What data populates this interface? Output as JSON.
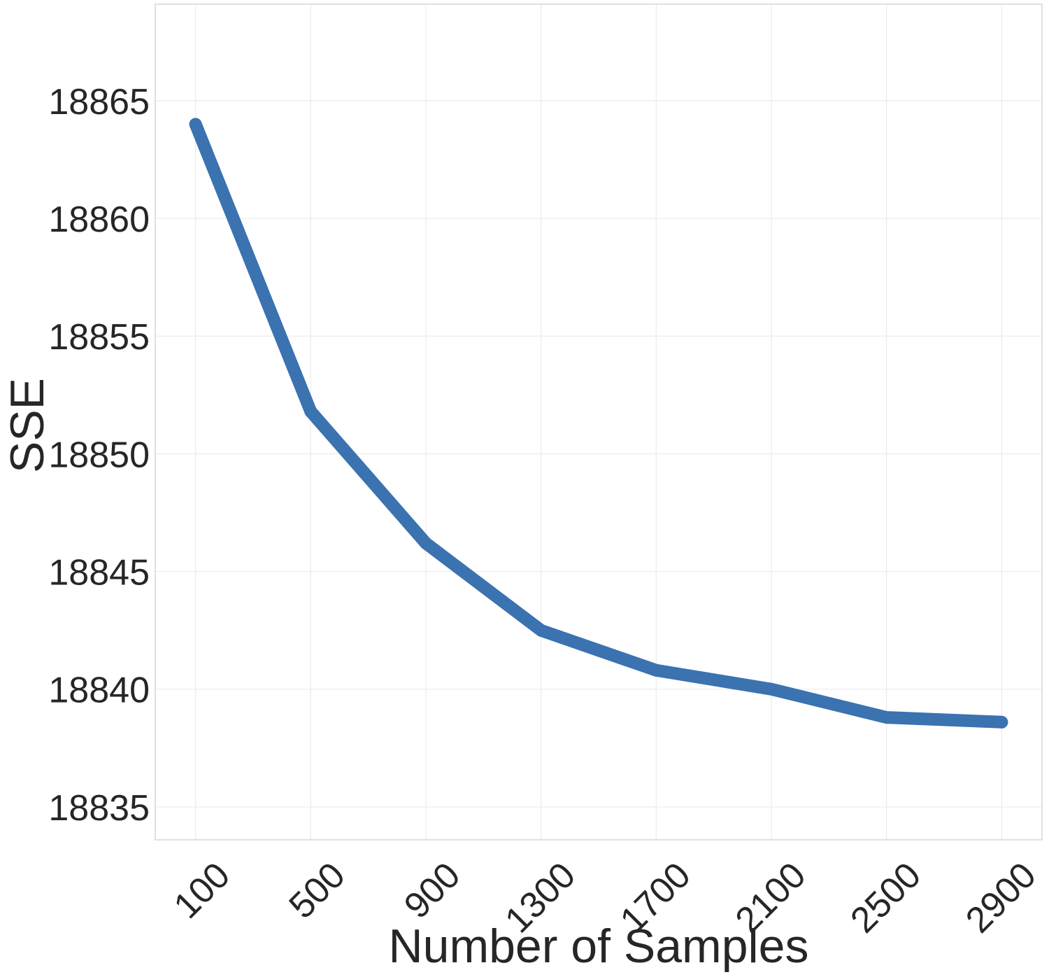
{
  "chart_data": {
    "type": "line",
    "title": "",
    "xlabel": "Number of Samples",
    "ylabel": "SSE",
    "x": [
      100,
      500,
      900,
      1300,
      1700,
      2100,
      2500,
      2900
    ],
    "x_tick_labels": [
      "100",
      "500",
      "900",
      "1300",
      "1700",
      "2100",
      "2500",
      "2900"
    ],
    "y_ticks": [
      18835,
      18840,
      18845,
      18850,
      18855,
      18860,
      18865
    ],
    "y_tick_labels": [
      "18835",
      "18840",
      "18845",
      "18850",
      "18855",
      "18860",
      "18865"
    ],
    "ylim": [
      18833.6,
      18869.1
    ],
    "xlim": [
      -40,
      3040
    ],
    "grid": true,
    "x_tick_rotation_deg": 45,
    "series": [
      {
        "values": [
          18864.0,
          18851.8,
          18846.2,
          18842.5,
          18840.8,
          18840.0,
          18838.8,
          18838.6
        ],
        "color": "#3b72b0"
      }
    ]
  }
}
